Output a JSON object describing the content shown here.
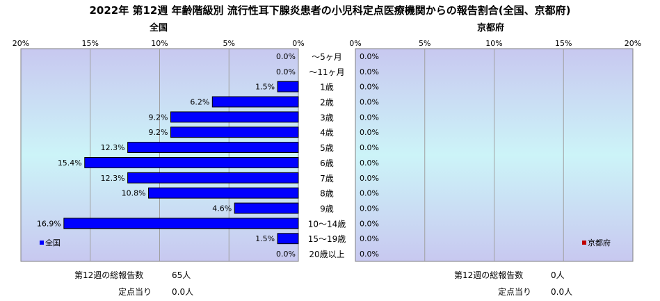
{
  "title": "2022年 第12週 年齢階級別 流行性耳下腺炎患者の小児科定点医療機関からの報告割合(全国、京都府)",
  "chart_data": [
    {
      "type": "bar",
      "orientation": "horizontal",
      "direction": "right-to-left",
      "title": "全国",
      "categories": [
        "～5ヶ月",
        "～11ヶ月",
        "1歳",
        "2歳",
        "3歳",
        "4歳",
        "5歳",
        "6歳",
        "7歳",
        "8歳",
        "9歳",
        "10～14歳",
        "15～19歳",
        "20歳以上"
      ],
      "series": [
        {
          "name": "全国",
          "color": "#0000ff",
          "values": [
            0.0,
            0.0,
            1.5,
            6.2,
            9.2,
            9.2,
            12.3,
            15.4,
            12.3,
            10.8,
            4.6,
            16.9,
            1.5,
            0.0
          ],
          "labels": [
            "0.0%",
            "0.0%",
            "1.5%",
            "6.2%",
            "9.2%",
            "9.2%",
            "12.3%",
            "15.4%",
            "12.3%",
            "10.8%",
            "4.6%",
            "16.9%",
            "1.5%",
            "0.0%"
          ]
        }
      ],
      "xlim": [
        0,
        20
      ],
      "ticks": [
        "20%",
        "15%",
        "10%",
        "5%",
        "0%"
      ],
      "legend": "bottom-left",
      "grid": true
    },
    {
      "type": "bar",
      "orientation": "horizontal",
      "direction": "left-to-right",
      "title": "京都府",
      "categories": [
        "～5ヶ月",
        "～11ヶ月",
        "1歳",
        "2歳",
        "3歳",
        "4歳",
        "5歳",
        "6歳",
        "7歳",
        "8歳",
        "9歳",
        "10～14歳",
        "15～19歳",
        "20歳以上"
      ],
      "series": [
        {
          "name": "京都府",
          "color": "#c00000",
          "values": [
            0.0,
            0.0,
            0.0,
            0.0,
            0.0,
            0.0,
            0.0,
            0.0,
            0.0,
            0.0,
            0.0,
            0.0,
            0.0,
            0.0
          ],
          "labels": [
            "0.0%",
            "0.0%",
            "0.0%",
            "0.0%",
            "0.0%",
            "0.0%",
            "0.0%",
            "0.0%",
            "0.0%",
            "0.0%",
            "0.0%",
            "0.0%",
            "0.0%",
            "0.0%"
          ]
        }
      ],
      "xlim": [
        0,
        20
      ],
      "ticks": [
        "0%",
        "5%",
        "10%",
        "15%",
        "20%"
      ],
      "legend": "bottom-right",
      "grid": true
    }
  ],
  "footer": {
    "national": {
      "total_label": "第12週の総報告数",
      "total_value": "65人",
      "per_label": "定点当り",
      "per_value": "0.0人"
    },
    "kyoto": {
      "total_label": "第12週の総報告数",
      "total_value": "0人",
      "per_label": "定点当り",
      "per_value": "0.0人"
    }
  }
}
